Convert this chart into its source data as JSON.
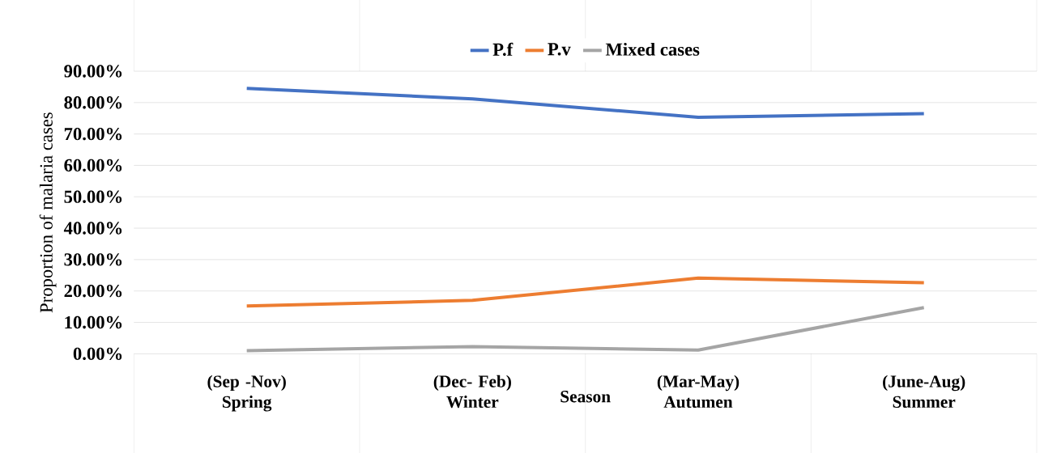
{
  "chart_data": {
    "type": "line",
    "xlabel": "Season",
    "ylabel": "Proportion of malaria cases",
    "categories": [
      "(Sep -Nov) Spring",
      "(Dec- Feb) Winter",
      "(Mar-May) Autumen",
      "(June-Aug) Summer"
    ],
    "series": [
      {
        "name": "P.f",
        "color": "#4472c4",
        "values": [
          84.5,
          81.2,
          75.3,
          76.5
        ]
      },
      {
        "name": "P.v",
        "color": "#ed7d31",
        "values": [
          15.2,
          17.0,
          24.1,
          22.6
        ]
      },
      {
        "name": "Mixed cases",
        "color": "#a5a5a5",
        "values": [
          1.0,
          2.3,
          1.2,
          14.7
        ]
      }
    ],
    "ylim": [
      0,
      90
    ],
    "yticks": [
      {
        "value": 0,
        "label": "0.00%"
      },
      {
        "value": 10,
        "label": "10.00%"
      },
      {
        "value": 20,
        "label": "20.00%"
      },
      {
        "value": 30,
        "label": "30.00%"
      },
      {
        "value": 40,
        "label": "40.00%"
      },
      {
        "value": 50,
        "label": "50.00%"
      },
      {
        "value": 60,
        "label": "60.00%"
      },
      {
        "value": 70,
        "label": "70.00%"
      },
      {
        "value": 80,
        "label": "80.00%"
      },
      {
        "value": 90,
        "label": "90.00%"
      }
    ],
    "grid": "y",
    "legend": "top",
    "marker": "none",
    "line_style": "solid"
  }
}
